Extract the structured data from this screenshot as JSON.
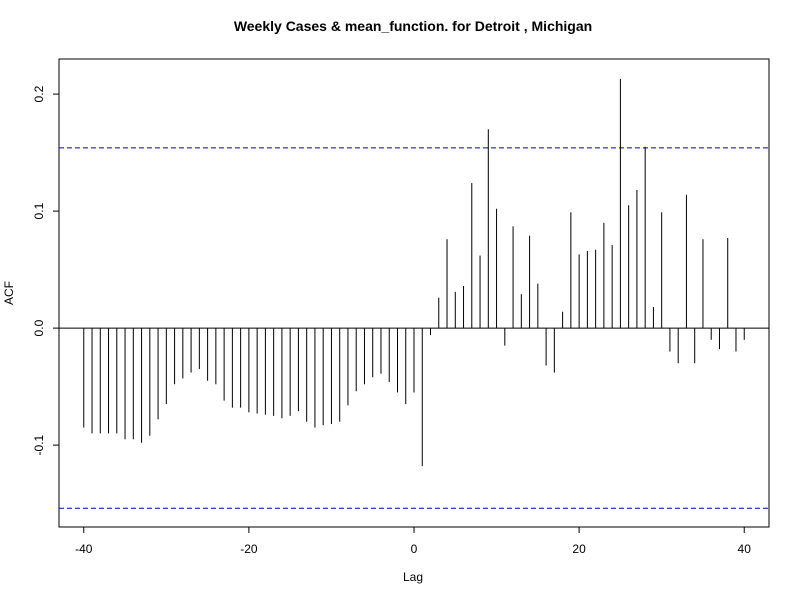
{
  "chart_data": {
    "type": "bar",
    "title": "Weekly Cases & mean_function. for Detroit , Michigan",
    "xlabel": "Lag",
    "ylabel": "ACF",
    "xlim": [
      -43,
      43
    ],
    "ylim": [
      -0.17,
      0.23
    ],
    "x_ticks": [
      -40,
      -20,
      0,
      20,
      40
    ],
    "x_tick_labels": [
      "-40",
      "-20",
      "0",
      "20",
      "40"
    ],
    "y_ticks": [
      -0.1,
      0.0,
      0.1,
      0.2
    ],
    "y_tick_labels": [
      "-0.1",
      "0.0",
      "0.1",
      "0.2"
    ],
    "confidence_limits": [
      0.154,
      -0.154
    ],
    "confidence_color": "#0000CC",
    "bar_color": "#000000",
    "zero_line": true,
    "grid": false,
    "lags": [
      -40,
      -39,
      -38,
      -37,
      -36,
      -35,
      -34,
      -33,
      -32,
      -31,
      -30,
      -29,
      -28,
      -27,
      -26,
      -25,
      -24,
      -23,
      -22,
      -21,
      -20,
      -19,
      -18,
      -17,
      -16,
      -15,
      -14,
      -13,
      -12,
      -11,
      -10,
      -9,
      -8,
      -7,
      -6,
      -5,
      -4,
      -3,
      -2,
      -1,
      0,
      1,
      2,
      3,
      4,
      5,
      6,
      7,
      8,
      9,
      10,
      11,
      12,
      13,
      14,
      15,
      16,
      17,
      18,
      19,
      20,
      21,
      22,
      23,
      24,
      25,
      26,
      27,
      28,
      29,
      30,
      31,
      32,
      33,
      34,
      35,
      36,
      37,
      38,
      39,
      40
    ],
    "values": [
      -0.085,
      -0.09,
      -0.09,
      -0.09,
      -0.09,
      -0.095,
      -0.095,
      -0.098,
      -0.092,
      -0.078,
      -0.065,
      -0.048,
      -0.043,
      -0.038,
      -0.035,
      -0.045,
      -0.048,
      -0.062,
      -0.068,
      -0.068,
      -0.072,
      -0.073,
      -0.074,
      -0.075,
      -0.077,
      -0.075,
      -0.071,
      -0.08,
      -0.085,
      -0.083,
      -0.082,
      -0.08,
      -0.066,
      -0.054,
      -0.048,
      -0.042,
      -0.039,
      -0.046,
      -0.055,
      -0.065,
      -0.055,
      -0.118,
      -0.006,
      0.026,
      0.076,
      0.031,
      0.036,
      0.124,
      0.062,
      0.17,
      0.102,
      -0.015,
      0.087,
      0.029,
      0.079,
      0.038,
      -0.032,
      -0.038,
      0.014,
      0.099,
      0.063,
      0.066,
      0.067,
      0.09,
      0.071,
      0.213,
      0.105,
      0.118,
      0.155,
      0.018,
      0.099,
      -0.02,
      -0.03,
      0.114,
      -0.03,
      0.076,
      -0.01,
      -0.018,
      0.077,
      -0.02,
      -0.01
    ]
  }
}
